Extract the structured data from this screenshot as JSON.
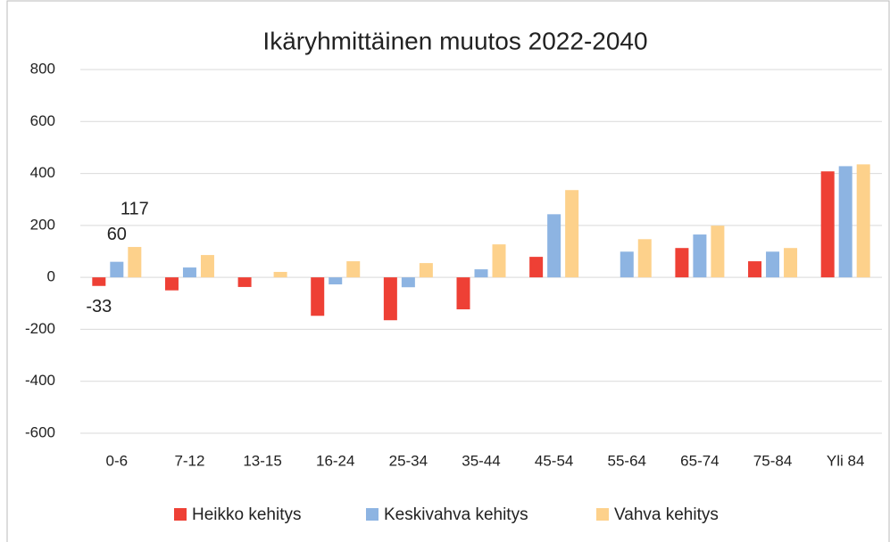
{
  "chart_data": {
    "type": "bar",
    "title": "Ikäryhmittäinen muutos 2022-2040",
    "categories": [
      "0-6",
      "7-12",
      "13-15",
      "16-24",
      "25-34",
      "35-44",
      "45-54",
      "55-64",
      "65-74",
      "75-84",
      "Yli 84"
    ],
    "series": [
      {
        "name": "Heikko kehitys",
        "color": "#ee4035",
        "values": [
          -33,
          -50,
          -37,
          -148,
          -165,
          -123,
          79,
          0,
          113,
          62,
          408
        ],
        "value_labels": [
          "-33",
          null,
          null,
          null,
          null,
          null,
          null,
          null,
          null,
          null,
          null
        ]
      },
      {
        "name": "Keskivahva kehitys",
        "color": "#8db4e2",
        "values": [
          60,
          38,
          0,
          -27,
          -38,
          31,
          243,
          99,
          165,
          99,
          428
        ],
        "value_labels": [
          "60",
          null,
          null,
          null,
          null,
          null,
          null,
          null,
          null,
          null,
          null
        ]
      },
      {
        "name": "Vahva kehitys",
        "color": "#fdd18b",
        "values": [
          117,
          86,
          21,
          62,
          55,
          127,
          336,
          147,
          199,
          113,
          435
        ],
        "value_labels": [
          "117",
          null,
          null,
          null,
          null,
          null,
          null,
          null,
          null,
          null,
          null
        ]
      }
    ],
    "ylim": [
      -600,
      800
    ],
    "yticks": [
      -600,
      -400,
      -200,
      0,
      200,
      400,
      600,
      800
    ],
    "grid": true,
    "legend": "bottom"
  }
}
